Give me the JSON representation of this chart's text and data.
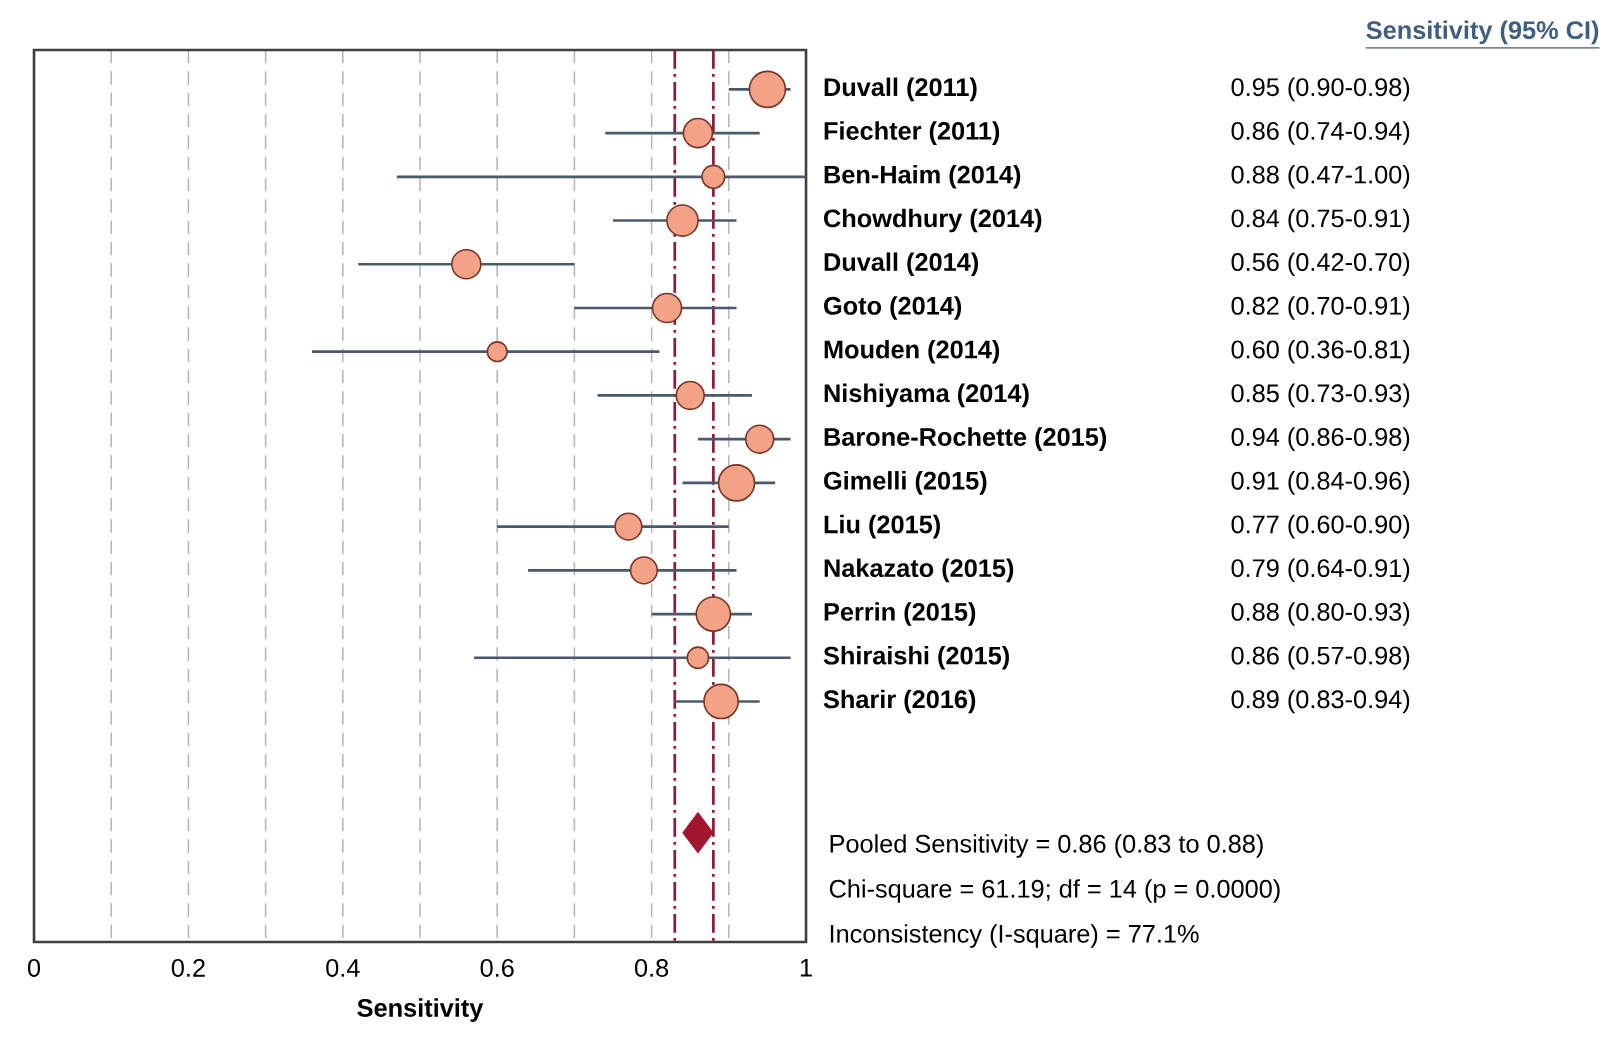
{
  "chart_data": {
    "type": "bubble",
    "orientation": "horizontal",
    "xlabel": "Sensitivity",
    "categories": [
      "Duvall (2011)",
      "Fiechter (2011)",
      "Ben-Haim (2014)",
      "Chowdhury (2014)",
      "Duvall (2014)",
      "Goto (2014)",
      "Mouden (2014)",
      "Nishiyama (2014)",
      "Barone-Rochette (2015)",
      "Gimelli (2015)",
      "Liu (2015)",
      "Nakazato (2015)",
      "Perrin (2015)",
      "Shiraishi (2015)",
      "Sharir (2016)",
      null,
      null,
      null
    ],
    "series": [
      {
        "color": "#f2a285",
        "values": [
          0.95,
          0.86,
          0.88,
          0.84,
          0.56,
          0.82,
          0.6,
          0.85,
          0.94,
          0.91,
          0.77,
          0.79,
          0.88,
          0.86,
          0.89,
          null,
          null,
          null
        ],
        "errors": [
          [
            0.9,
            0.98
          ],
          [
            0.74,
            0.94
          ],
          [
            0.47,
            1.0
          ],
          [
            0.75,
            0.91
          ],
          [
            0.42,
            0.7
          ],
          [
            0.7,
            0.91
          ],
          [
            0.36,
            0.81
          ],
          [
            0.73,
            0.93
          ],
          [
            0.86,
            0.98
          ],
          [
            0.84,
            0.96
          ],
          [
            0.6,
            0.9
          ],
          [
            0.64,
            0.91
          ],
          [
            0.8,
            0.93
          ],
          [
            0.57,
            0.98
          ],
          [
            0.83,
            0.94
          ],
          null,
          null,
          null
        ],
        "sizes": [
          1,
          0.65,
          0.4,
          0.75,
          0.65,
          0.65,
          0.3,
          0.6,
          0.6,
          1,
          0.55,
          0.55,
          0.9,
          0.35,
          0.9,
          null,
          null,
          null
        ],
        "value_labels": [
          "0.95 (0.90-0.98)",
          "0.86 (0.74-0.94)",
          "0.88 (0.47-1.00)",
          "0.84 (0.75-0.91)",
          "0.56 (0.42-0.70)",
          "0.82 (0.70-0.91)",
          "0.60 (0.36-0.81)",
          "0.85 (0.73-0.93)",
          "0.94 (0.86-0.98)",
          "0.91 (0.84-0.96)",
          "0.77 (0.60-0.90)",
          "0.79 (0.64-0.91)",
          "0.88 (0.80-0.93)",
          "0.86 (0.57-0.98)",
          "0.89 (0.83-0.94)",
          null,
          null,
          null
        ]
      },
      {
        "type": "scatter",
        "marker": "diamond",
        "color": "#a3162f",
        "values": [
          null,
          null,
          null,
          null,
          null,
          null,
          null,
          null,
          null,
          null,
          null,
          null,
          null,
          null,
          null,
          null,
          null,
          0.86
        ]
      }
    ],
    "xlim": [
      0,
      1
    ],
    "xticks": [
      0,
      {
        "value": 0.1,
        "label": null
      },
      0.2,
      {
        "value": 0.3,
        "label": null
      },
      0.4,
      {
        "value": 0.5,
        "label": null
      },
      0.6,
      {
        "value": 0.7,
        "label": null
      },
      0.8,
      {
        "value": 0.9,
        "label": null
      },
      1
    ],
    "grid": "x",
    "marker": "circle",
    "ref_lines": [
      {
        "axis": "x",
        "value": 0.83,
        "color": "#8b1a3a",
        "line_style": "dashed"
      },
      {
        "axis": "x",
        "value": 0.88,
        "color": "#8b1a3a",
        "line_style": "dashed"
      }
    ],
    "annotations": [
      "Sensitivity (95% CI)",
      "Pooled Sensitivity = 0.86 (0.83 to 0.88)",
      "Chi-square = 61.19; df = 14 (p = 0.0000)",
      "Inconsistency (I-square) = 77.1%"
    ]
  }
}
